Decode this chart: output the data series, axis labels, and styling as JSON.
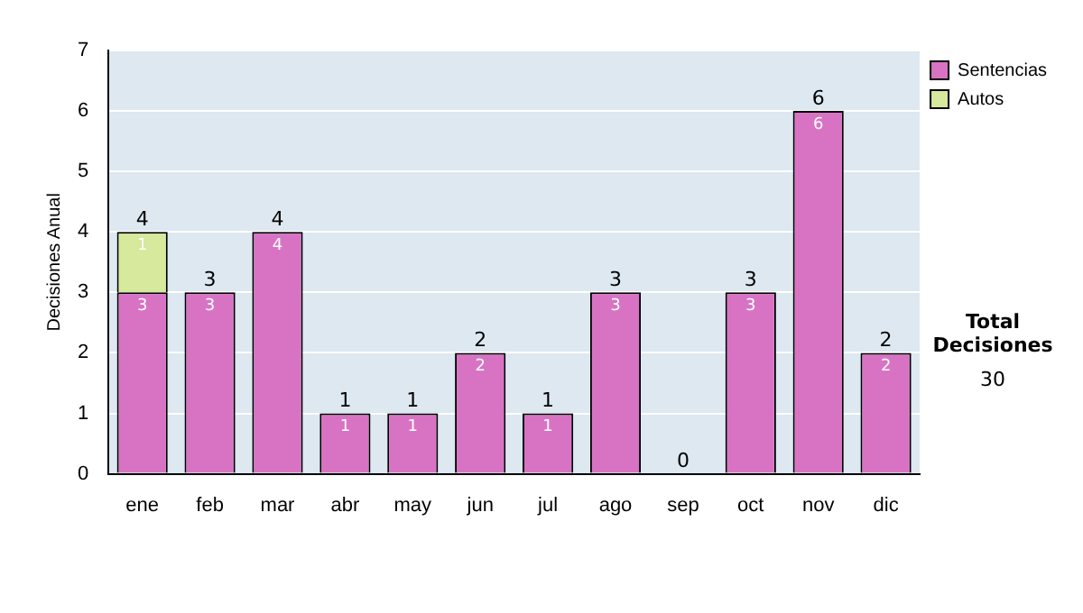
{
  "chart_data": {
    "type": "bar",
    "stacked": true,
    "ylabel": "Decisiones Anual",
    "categories": [
      "ene",
      "feb",
      "mar",
      "abr",
      "may",
      "jun",
      "jul",
      "ago",
      "sep",
      "oct",
      "nov",
      "dic"
    ],
    "series": [
      {
        "name": "Sentencias",
        "color": "#d873c4",
        "values": [
          3,
          3,
          4,
          1,
          1,
          2,
          1,
          3,
          0,
          3,
          6,
          2
        ],
        "value_labels": [
          "3",
          "3",
          "4",
          "1",
          "1",
          "2",
          "1",
          "3",
          null,
          "3",
          "6",
          "2"
        ]
      },
      {
        "name": "Autos",
        "color": "#d6e99c",
        "values": [
          1,
          0,
          0,
          0,
          0,
          0,
          0,
          0,
          0,
          0,
          0,
          0
        ],
        "value_labels": [
          "1",
          null,
          null,
          null,
          null,
          null,
          null,
          null,
          null,
          null,
          null,
          null
        ]
      }
    ],
    "totals": [
      "4",
      "3",
      "4",
      "1",
      "1",
      "2",
      "1",
      "3",
      "0",
      "3",
      "6",
      "2"
    ],
    "ylim": [
      0,
      7
    ],
    "yticks": [
      0,
      1,
      2,
      3,
      4,
      5,
      6,
      7
    ],
    "grid": "y",
    "legend": "right",
    "annotations": [
      "Total Decisiones",
      "30"
    ]
  }
}
